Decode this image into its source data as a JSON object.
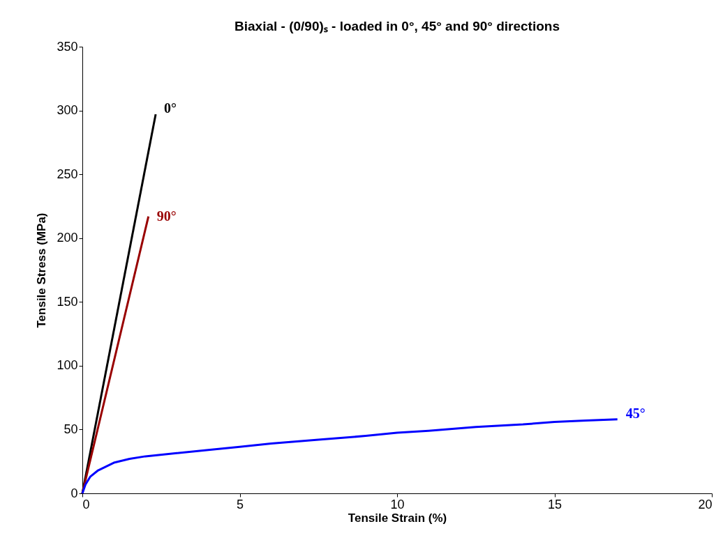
{
  "chart_data": {
    "type": "line",
    "title": "Biaxial - (0/90)ₛ - loaded in 0°, 45° and 90° directions",
    "xlabel": "Tensile Strain (%)",
    "ylabel": "Tensile Stress (MPa)",
    "xlim": [
      0,
      20
    ],
    "xticks": [
      0,
      5,
      10,
      15,
      20
    ],
    "ylim": [
      0,
      350
    ],
    "yticks": [
      0,
      50,
      100,
      150,
      200,
      250,
      300,
      350
    ],
    "grid": false,
    "marker": "none",
    "line_style": "solid",
    "series": [
      {
        "name": "0°",
        "color": "#000000",
        "x": [
          0,
          2.33
        ],
        "values": [
          0,
          297
        ]
      },
      {
        "name": "90°",
        "color": "#990000",
        "x": [
          0,
          2.1
        ],
        "values": [
          0,
          217
        ]
      },
      {
        "name": "45°",
        "color": "#0000ff",
        "x": [
          0,
          0.1,
          0.25,
          0.5,
          0.75,
          1,
          1.5,
          2,
          3,
          4,
          5,
          6,
          7.5,
          9,
          10,
          11,
          12.5,
          14,
          15,
          16,
          17
        ],
        "values": [
          0,
          7,
          13,
          18,
          21,
          24,
          27,
          29,
          31.5,
          34,
          36.5,
          39,
          42,
          45,
          47.5,
          49,
          52,
          54,
          56,
          57,
          58
        ]
      }
    ]
  }
}
